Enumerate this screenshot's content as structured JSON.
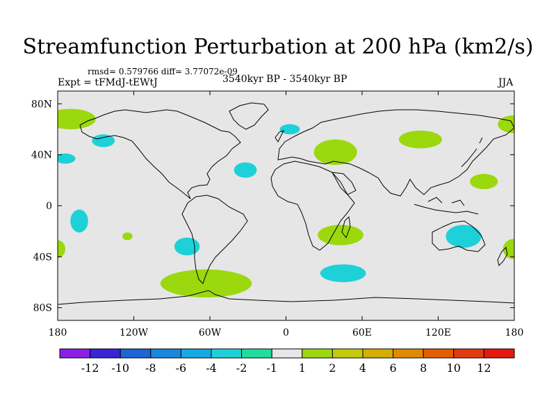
{
  "title": "Streamfunction Perturbation at 200 hPa (km2/s)",
  "stats": "rmsd= 0.579766 diff= 3.77072e-09",
  "experiment": "Expt = tFMdJ-tEWtJ",
  "period": "3540kyr BP - 3540kyr BP",
  "season": "JJA",
  "axes": {
    "lon_ticks": [
      {
        "label": "180",
        "value": -180
      },
      {
        "label": "120W",
        "value": -120
      },
      {
        "label": "60W",
        "value": -60
      },
      {
        "label": "0",
        "value": 0
      },
      {
        "label": "60E",
        "value": 60
      },
      {
        "label": "120E",
        "value": 120
      },
      {
        "label": "180",
        "value": 180
      }
    ],
    "lat_ticks": [
      {
        "label": "80N",
        "value": 80
      },
      {
        "label": "40N",
        "value": 40
      },
      {
        "label": "0",
        "value": 0
      },
      {
        "label": "40S",
        "value": -40
      },
      {
        "label": "80S",
        "value": -80
      }
    ],
    "lon_range": [
      -180,
      180
    ],
    "lat_range": [
      -90,
      90
    ]
  },
  "colorbar": {
    "colors": [
      "#8c1ee6",
      "#3a24d6",
      "#1f64d6",
      "#1a86dc",
      "#16a8e0",
      "#1ed1d8",
      "#21dca1",
      "#e6e6e6",
      "#9bd80e",
      "#c6c90b",
      "#d6ad00",
      "#e08a00",
      "#e25e00",
      "#e23a10",
      "#e41a10"
    ],
    "labels": [
      "-12",
      "-10",
      "-8",
      "-6",
      "-4",
      "-2",
      "-1",
      "1",
      "2",
      "4",
      "6",
      "8",
      "10",
      "12"
    ]
  },
  "anomalies": [
    {
      "name": "anomaly-pacific-north-west",
      "lon": -170,
      "lat": 68,
      "rx": 20,
      "ry": 8,
      "level": "2"
    },
    {
      "name": "anomaly-gulf-of-alaska",
      "lon": -144,
      "lat": 51,
      "rx": 9,
      "ry": 5,
      "level": "-2"
    },
    {
      "name": "anomaly-north-pacific-east",
      "lon": -174,
      "lat": 37,
      "rx": 8,
      "ry": 4,
      "level": "-2"
    },
    {
      "name": "anomaly-subtropical-pacific",
      "lon": -163,
      "lat": -12,
      "rx": 7,
      "ry": 9,
      "level": "-2"
    },
    {
      "name": "anomaly-south-pacific-small",
      "lon": -125,
      "lat": -24,
      "rx": 4,
      "ry": 3,
      "level": "2"
    },
    {
      "name": "anomaly-western-edge-south",
      "lon": -180,
      "lat": -34,
      "rx": 6,
      "ry": 7,
      "level": "2"
    },
    {
      "name": "anomaly-chile-coast",
      "lon": -78,
      "lat": -32,
      "rx": 10,
      "ry": 7,
      "level": "-2"
    },
    {
      "name": "anomaly-drake-passage",
      "lon": -63,
      "lat": -61,
      "rx": 36,
      "ry": 11,
      "level": "2"
    },
    {
      "name": "anomaly-north-atlantic",
      "lon": -32,
      "lat": 28,
      "rx": 9,
      "ry": 6,
      "level": "-2"
    },
    {
      "name": "anomaly-scandinavia",
      "lon": 3,
      "lat": 60,
      "rx": 8,
      "ry": 4,
      "level": "-2"
    },
    {
      "name": "anomaly-mediterranean",
      "lon": 39,
      "lat": 42,
      "rx": 17,
      "ry": 10,
      "level": "2"
    },
    {
      "name": "anomaly-madagascar",
      "lon": 43,
      "lat": -23,
      "rx": 18,
      "ry": 8,
      "level": "2"
    },
    {
      "name": "anomaly-southern-indian",
      "lon": 45,
      "lat": -53,
      "rx": 18,
      "ry": 7,
      "level": "-2"
    },
    {
      "name": "anomaly-north-pacific-west",
      "lon": 106,
      "lat": 52,
      "rx": 17,
      "ry": 7,
      "level": "2"
    },
    {
      "name": "anomaly-western-pacific",
      "lon": 156,
      "lat": 19,
      "rx": 11,
      "ry": 6,
      "level": "2"
    },
    {
      "name": "anomaly-australia",
      "lon": 140,
      "lat": -24,
      "rx": 14,
      "ry": 9,
      "level": "-2"
    },
    {
      "name": "anomaly-eastern-edge-north",
      "lon": 180,
      "lat": 64,
      "rx": 13,
      "ry": 7,
      "level": "2"
    },
    {
      "name": "anomaly-eastern-edge-south",
      "lon": 180,
      "lat": -34,
      "rx": 9,
      "ry": 8,
      "level": "2"
    }
  ]
}
